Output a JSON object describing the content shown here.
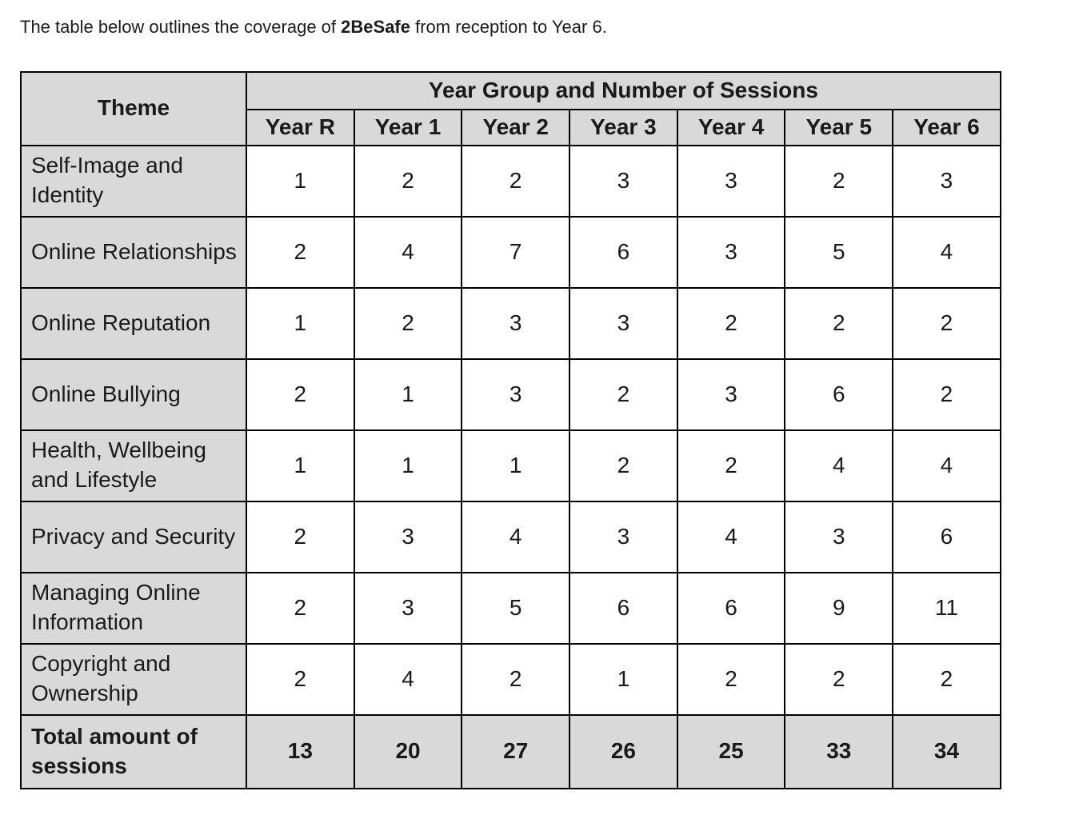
{
  "intro": {
    "text_before": "The table below outlines the coverage of ",
    "highlight": "2BeSafe",
    "text_after": " from reception to Year 6."
  },
  "table": {
    "theme_header": "Theme",
    "group_header": "Year Group and Number of Sessions",
    "year_headers": [
      "Year R",
      "Year 1",
      "Year 2",
      "Year 3",
      "Year 4",
      "Year 5",
      "Year 6"
    ],
    "rows": [
      {
        "theme": "Self-Image and Identity",
        "values": [
          1,
          2,
          2,
          3,
          3,
          2,
          3
        ]
      },
      {
        "theme": "Online Relationships",
        "values": [
          2,
          4,
          7,
          6,
          3,
          5,
          4
        ]
      },
      {
        "theme": "Online Reputation",
        "values": [
          1,
          2,
          3,
          3,
          2,
          2,
          2
        ]
      },
      {
        "theme": "Online Bullying",
        "values": [
          2,
          1,
          3,
          2,
          3,
          6,
          2
        ]
      },
      {
        "theme": "Health, Wellbeing and Lifestyle",
        "values": [
          1,
          1,
          1,
          2,
          2,
          4,
          4
        ]
      },
      {
        "theme": "Privacy and Security",
        "values": [
          2,
          3,
          4,
          3,
          4,
          3,
          6
        ]
      },
      {
        "theme": "Managing Online Information",
        "values": [
          2,
          3,
          5,
          6,
          6,
          9,
          11
        ]
      },
      {
        "theme": "Copyright and Ownership",
        "values": [
          2,
          4,
          2,
          1,
          2,
          2,
          2
        ]
      }
    ],
    "total": {
      "label": "Total amount of sessions",
      "values": [
        13,
        20,
        27,
        26,
        25,
        33,
        34
      ]
    }
  },
  "colors": {
    "shaded_cell_bg": "#d9d9d9",
    "border": "#000000",
    "text": "#1a1a1a",
    "page_bg": "#ffffff"
  }
}
